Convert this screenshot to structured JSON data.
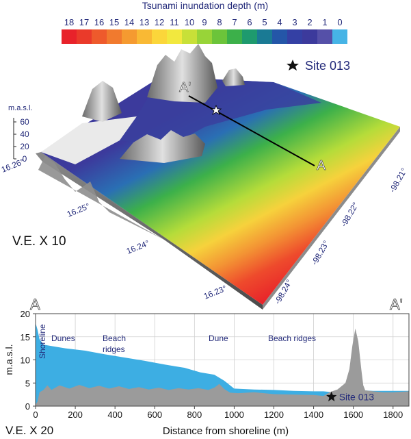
{
  "colorbar": {
    "title": "Tsunami inundation depth (m)",
    "ticks": [
      "18",
      "17",
      "16",
      "15",
      "14",
      "13",
      "12",
      "11",
      "10",
      "9",
      "8",
      "7",
      "6",
      "5",
      "4",
      "3",
      "2",
      "1",
      "0"
    ],
    "colors": [
      "#e8222a",
      "#ea3a2a",
      "#ee5a2c",
      "#f17a2e",
      "#f59a30",
      "#f9b934",
      "#fbd63a",
      "#f2e83e",
      "#c8e038",
      "#98d438",
      "#6cc43a",
      "#3cb04a",
      "#1e9a6e",
      "#1a7a94",
      "#2456a8",
      "#3440a4",
      "#3c3a9c",
      "#5550a8",
      "#46b4e6"
    ]
  },
  "map3d": {
    "site_label": "Site 013",
    "zlabel": "m.a.s.l.",
    "zticks": [
      "60",
      "40",
      "20",
      "0"
    ],
    "lat_ticks": [
      "16.26°",
      "16.25°",
      "16.24°",
      "16.23°"
    ],
    "lon_ticks": [
      "-98.21°",
      "-98.22°",
      "-98.23°",
      "-98.24°"
    ],
    "transect_start": "A'",
    "transect_end": "A",
    "ve_label": "V.E. X 10"
  },
  "profile_labels": {
    "left": "A",
    "right": "A'",
    "ve_label": "V.E. X 20",
    "site_label": "Site 013",
    "annotations": [
      "Shoreline",
      "Dunes",
      "Beach\nridges",
      "Dune",
      "Beach ridges"
    ]
  },
  "chart_data": {
    "type": "area",
    "xlabel": "Distance from shoreline (m)",
    "ylabel": "m.a.s.l.",
    "xlim": [
      0,
      1880
    ],
    "ylim": [
      0,
      20
    ],
    "xticks": [
      0,
      200,
      400,
      600,
      800,
      1000,
      1200,
      1400,
      1600,
      1800
    ],
    "yticks": [
      0,
      5,
      10,
      15,
      20
    ],
    "grid": true,
    "series": [
      {
        "name": "",
        "color": "#3daee3",
        "x": [
          0,
          10,
          20,
          40,
          80,
          150,
          250,
          350,
          450,
          550,
          650,
          750,
          830,
          900,
          950,
          1000,
          1100,
          1200,
          1300,
          1400,
          1450,
          1500,
          1550,
          1580,
          1620,
          1650,
          1700,
          1750,
          1800,
          1880
        ],
        "y": [
          18.0,
          16.5,
          14.5,
          13.3,
          13.0,
          12.5,
          12.0,
          11.2,
          10.5,
          9.8,
          9.0,
          8.3,
          7.3,
          6.8,
          5.5,
          3.8,
          3.6,
          3.5,
          3.3,
          3.2,
          3.2,
          3.0,
          3.0,
          3.3,
          3.6,
          3.4,
          3.3,
          3.3,
          3.3,
          3.3
        ]
      },
      {
        "name": "",
        "color": "#9b9b9b",
        "x": [
          0,
          10,
          20,
          40,
          60,
          80,
          120,
          170,
          220,
          270,
          320,
          370,
          420,
          470,
          520,
          570,
          620,
          670,
          720,
          770,
          820,
          870,
          900,
          925,
          950,
          980,
          1020,
          1100,
          1200,
          1300,
          1400,
          1450,
          1480,
          1520,
          1560,
          1580,
          1595,
          1610,
          1625,
          1640,
          1650,
          1660,
          1700,
          1750,
          1800,
          1880
        ],
        "y": [
          0.3,
          1.0,
          3.0,
          3.5,
          4.5,
          3.5,
          4.5,
          3.8,
          4.6,
          3.9,
          4.4,
          3.8,
          4.3,
          3.7,
          4.1,
          3.6,
          4.0,
          3.5,
          3.9,
          3.6,
          3.9,
          3.5,
          4.0,
          4.8,
          3.7,
          2.9,
          2.8,
          3.0,
          2.6,
          2.5,
          2.4,
          2.2,
          3.0,
          3.6,
          5.0,
          8.0,
          13.0,
          16.8,
          14.0,
          8.0,
          4.5,
          3.4,
          3.2,
          3.0,
          3.0,
          3.2
        ]
      }
    ],
    "site_marker": {
      "x": 1490,
      "y": 2.0
    }
  }
}
